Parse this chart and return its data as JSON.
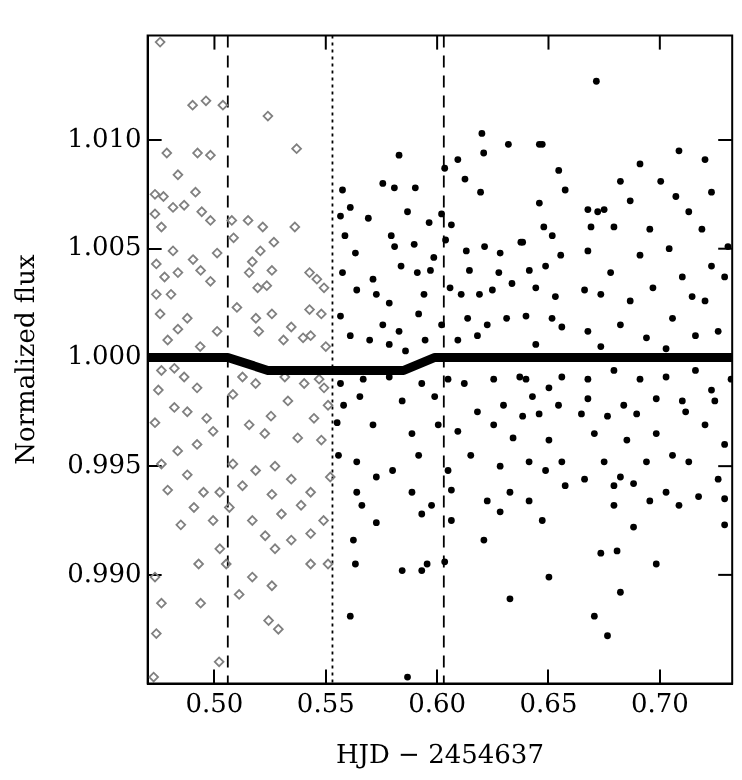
{
  "chart_data": {
    "type": "scatter",
    "xlabel": "HJD − 2454637",
    "ylabel": "Normalized flux",
    "xlim": [
      0.47,
      0.7325
    ],
    "ylim": [
      0.985,
      1.0148
    ],
    "xticks": [
      {
        "value": 0.5,
        "label": "0.50"
      },
      {
        "value": 0.55,
        "label": "0.55"
      },
      {
        "value": 0.6,
        "label": "0.60"
      },
      {
        "value": 0.65,
        "label": "0.65"
      },
      {
        "value": 0.7,
        "label": "0.70"
      }
    ],
    "yticks": [
      {
        "value": 0.99,
        "label": "0.990"
      },
      {
        "value": 0.995,
        "label": "0.995"
      },
      {
        "value": 1.0,
        "label": "1.000"
      },
      {
        "value": 1.005,
        "label": "1.005"
      },
      {
        "value": 1.01,
        "label": "1.010"
      }
    ],
    "ref_lines": [
      {
        "axis": "x",
        "value": 0.506,
        "color": "#000000",
        "line_style": "dashed"
      },
      {
        "axis": "x",
        "value": 0.553,
        "color": "#000000",
        "line_style": "dotted"
      },
      {
        "axis": "x",
        "value": 0.603,
        "color": "#000000",
        "line_style": "dashed"
      }
    ],
    "series": [
      {
        "type": "scatter",
        "marker": "diamond",
        "color": "#808080",
        "x": [
          0.4756,
          0.4902,
          0.4962,
          0.5038,
          0.524,
          0.5369,
          0.4786,
          0.4924,
          0.4982,
          0.4836,
          0.4915,
          0.4733,
          0.4771,
          0.4814,
          0.4864,
          0.4943,
          0.4982,
          0.4733,
          0.4762,
          0.5078,
          0.5151,
          0.5217,
          0.5361,
          0.5267,
          0.5206,
          0.5086,
          0.517,
          0.5012,
          0.4904,
          0.4814,
          0.4739,
          0.4836,
          0.4938,
          0.5156,
          0.5258,
          0.5427,
          0.4776,
          0.4805,
          0.4739,
          0.4982,
          0.5194,
          0.5235,
          0.5101,
          0.5427,
          0.5492,
          0.4756,
          0.4878,
          0.5012,
          0.5186,
          0.5199,
          0.5258,
          0.5345,
          0.5432,
          0.4836,
          0.479,
          0.4936,
          0.531,
          0.5398,
          0.4762,
          0.482,
          0.4864,
          0.4922,
          0.4748,
          0.5126,
          0.5185,
          0.5316,
          0.5403,
          0.5492,
          0.5083,
          0.482,
          0.4878,
          0.4965,
          0.4733,
          0.5156,
          0.5254,
          0.533,
          0.5447,
          0.5226,
          0.5374,
          0.4922,
          0.4994,
          0.4835,
          0.4762,
          0.5083,
          0.5185,
          0.5272,
          0.5345,
          0.4878,
          0.479,
          0.4951,
          0.5024,
          0.5126,
          0.5258,
          0.5432,
          0.4994,
          0.5067,
          0.517,
          0.5301,
          0.5389,
          0.4908,
          0.4849,
          0.5228,
          0.5345,
          0.5432,
          0.5024,
          0.5272,
          0.5432,
          0.4929,
          0.4733,
          0.5053,
          0.517,
          0.5258,
          0.5111,
          0.4938,
          0.4762,
          0.5243,
          0.5287,
          0.4739,
          0.5021,
          0.4727,
          0.546,
          0.548,
          0.55,
          0.547,
          0.551,
          0.548,
          0.552,
          0.549,
          0.551
        ],
        "values": [
          1.0145,
          1.0116,
          1.0118,
          1.0116,
          1.0111,
          1.0096,
          1.0094,
          1.0094,
          1.0093,
          1.0084,
          1.0076,
          1.0075,
          1.0074,
          1.0069,
          1.007,
          1.0067,
          1.0063,
          1.0066,
          1.006,
          1.0063,
          1.0063,
          1.006,
          1.006,
          1.0053,
          1.0049,
          1.0055,
          1.0044,
          1.0048,
          1.0045,
          1.0049,
          1.0043,
          1.0039,
          1.004,
          1.0039,
          1.004,
          1.0039,
          1.0037,
          1.0029,
          1.0029,
          1.0035,
          1.0032,
          1.0033,
          1.0023,
          1.0022,
          1.0032,
          1.002,
          1.0018,
          1.0012,
          1.0018,
          1.0012,
          1.002,
          1.0014,
          1.001,
          1.0013,
          1.0008,
          1.0005,
          1.0008,
          1.0009,
          0.9994,
          0.9995,
          0.9991,
          0.9986,
          0.9985,
          0.9991,
          0.9988,
          0.9991,
          0.9988,
          0.9986,
          0.9983,
          0.9977,
          0.9975,
          0.9972,
          0.997,
          0.9969,
          0.9973,
          0.998,
          0.9972,
          0.9965,
          0.9963,
          0.996,
          0.9966,
          0.9957,
          0.9951,
          0.9951,
          0.9948,
          0.995,
          0.9944,
          0.9946,
          0.9939,
          0.9938,
          0.9938,
          0.9941,
          0.9937,
          0.9938,
          0.9925,
          0.9931,
          0.9925,
          0.9928,
          0.9932,
          0.9931,
          0.9923,
          0.9918,
          0.9916,
          0.9919,
          0.9912,
          0.9912,
          0.9905,
          0.9905,
          0.9899,
          0.9905,
          0.9899,
          0.9895,
          0.9891,
          0.9887,
          0.9887,
          0.9879,
          0.9875,
          0.9873,
          0.986,
          0.9853,
          1.0036,
          1.002,
          1.0005,
          0.999,
          0.9978,
          0.9962,
          0.9945,
          0.9925,
          0.9905
        ]
      },
      {
        "type": "scatter",
        "marker": "circle",
        "color": "#000000",
        "x": [
          0.5575,
          0.561,
          0.5566,
          0.5586,
          0.5691,
          0.5756,
          0.5829,
          0.5808,
          0.5902,
          0.5867,
          0.6034,
          0.6093,
          0.6125,
          0.6201,
          0.6209,
          0.632,
          0.602,
          0.6064,
          0.5794,
          0.5964,
          0.6195,
          0.6376,
          0.5633,
          0.5809,
          0.5897,
          0.5985,
          0.6038,
          0.6131,
          0.6213,
          0.6283,
          0.5575,
          0.5712,
          0.5838,
          0.5911,
          0.597,
          0.6145,
          0.6277,
          0.5639,
          0.5727,
          0.5785,
          0.5941,
          0.6058,
          0.6108,
          0.619,
          0.6248,
          0.6336,
          0.5566,
          0.5756,
          0.5829,
          0.5917,
          0.602,
          0.6137,
          0.6225,
          0.6312,
          0.561,
          0.5697,
          0.5785,
          0.5858,
          0.5946,
          0.6093,
          0.6181,
          0.5566,
          0.5668,
          0.5785,
          0.5931,
          0.6049,
          0.6122,
          0.6254,
          0.6371,
          0.558,
          0.5653,
          0.5843,
          0.5989,
          0.6181,
          0.6298,
          0.5551,
          0.5712,
          0.5887,
          0.6005,
          0.6093,
          0.6254,
          0.6341,
          0.5557,
          0.5639,
          0.58,
          0.5917,
          0.6049,
          0.6151,
          0.6283,
          0.5639,
          0.5727,
          0.5887,
          0.5975,
          0.6064,
          0.6225,
          0.6327,
          0.5662,
          0.5727,
          0.5931,
          0.6064,
          0.621,
          0.6283,
          0.5624,
          0.5633,
          0.5843,
          0.5931,
          0.5955,
          0.6034,
          0.6327,
          0.561,
          0.5867,
          0.6715,
          0.6459,
          0.6472,
          0.6546,
          0.6575,
          0.6459,
          0.6479,
          0.6517,
          0.6384,
          0.6911,
          0.6823,
          0.7004,
          0.7086,
          0.7203,
          0.7232,
          0.6677,
          0.6721,
          0.675,
          0.6867,
          0.6955,
          0.7072,
          0.713,
          0.7189,
          0.7306,
          0.6691,
          0.6794,
          0.6414,
          0.6487,
          0.6555,
          0.6677,
          0.6779,
          0.6911,
          0.7042,
          0.7232,
          0.7291,
          0.6443,
          0.6531,
          0.6662,
          0.6735,
          0.6867,
          0.6969,
          0.7101,
          0.7145,
          0.7203,
          0.6399,
          0.6516,
          0.656,
          0.6677,
          0.6823,
          0.694,
          0.7057,
          0.716,
          0.7262,
          0.6443,
          0.6735,
          0.7028,
          0.6399,
          0.6502,
          0.656,
          0.6677,
          0.6794,
          0.6911,
          0.7028,
          0.716,
          0.7232,
          0.732,
          0.6428,
          0.6545,
          0.6677,
          0.6838,
          0.6984,
          0.7101,
          0.7247,
          0.6384,
          0.6458,
          0.6648,
          0.6765,
          0.6896,
          0.7116,
          0.7203,
          0.6502,
          0.6706,
          0.6852,
          0.6984,
          0.7057,
          0.7291,
          0.6413,
          0.6487,
          0.656,
          0.675,
          0.6823,
          0.694,
          0.713,
          0.7262,
          0.6413,
          0.6575,
          0.6662,
          0.6794,
          0.6882,
          0.7028,
          0.7174,
          0.7291,
          0.6472,
          0.6794,
          0.6955,
          0.7086,
          0.6882,
          0.7291,
          0.6735,
          0.6808,
          0.6984,
          0.6502,
          0.6823,
          0.6706,
          0.6765
        ],
        "values": [
          1.0077,
          1.0069,
          1.0065,
          1.0056,
          1.0064,
          1.008,
          1.0093,
          1.0078,
          1.0078,
          1.0067,
          1.0087,
          1.0091,
          1.0082,
          1.0103,
          1.0094,
          1.0098,
          1.0066,
          1.0061,
          1.0056,
          1.0062,
          1.0076,
          1.0053,
          1.0048,
          1.0051,
          1.0052,
          1.0046,
          1.0054,
          1.0049,
          1.0051,
          1.0048,
          1.0039,
          1.0036,
          1.0042,
          1.0039,
          1.004,
          1.004,
          1.0039,
          1.0031,
          1.0029,
          1.0025,
          1.0029,
          1.0032,
          1.0029,
          1.0029,
          1.0031,
          1.0034,
          1.0019,
          1.0015,
          1.0012,
          1.002,
          1.0015,
          1.0018,
          1.0015,
          1.0018,
          1.001,
          1.0008,
          1.0006,
          1.0003,
          1.0008,
          1.0008,
          1.001,
          0.9988,
          0.999,
          0.9991,
          0.9988,
          0.999,
          0.9988,
          0.999,
          0.9991,
          0.9978,
          0.9982,
          0.998,
          0.9982,
          0.9975,
          0.9978,
          0.997,
          0.9969,
          0.9965,
          0.9969,
          0.9966,
          0.9969,
          0.9963,
          0.9955,
          0.9952,
          0.9948,
          0.9955,
          0.9948,
          0.9955,
          0.995,
          0.9938,
          0.9945,
          0.9938,
          0.9932,
          0.9939,
          0.9934,
          0.9938,
          0.9932,
          0.9924,
          0.9928,
          0.9925,
          0.9916,
          0.9929,
          0.9916,
          0.9905,
          0.9902,
          0.9902,
          0.9905,
          0.9906,
          0.9889,
          0.9881,
          0.9853,
          1.0127,
          1.0098,
          1.0098,
          1.0086,
          1.0077,
          1.0071,
          1.006,
          1.0056,
          1.0053,
          1.0089,
          1.0081,
          1.0081,
          1.0095,
          1.0091,
          1.0076,
          1.0068,
          1.0067,
          1.0068,
          1.0072,
          1.0059,
          1.0074,
          1.0067,
          1.0059,
          1.0051,
          1.006,
          1.006,
          1.004,
          1.0042,
          1.0047,
          1.0049,
          1.0039,
          1.0047,
          1.005,
          1.0042,
          1.0037,
          1.0032,
          1.0028,
          1.0031,
          1.0029,
          1.0026,
          1.0032,
          1.0037,
          1.0028,
          1.0026,
          1.0019,
          1.0018,
          1.0014,
          1.0012,
          1.0015,
          1.0009,
          1.0018,
          1.001,
          1.0012,
          1.0006,
          1.0005,
          1.0004,
          0.999,
          0.9986,
          0.9991,
          0.999,
          0.9994,
          0.999,
          0.9991,
          0.9994,
          0.9985,
          0.999,
          0.9982,
          0.9978,
          0.9981,
          0.9978,
          0.9981,
          0.998,
          0.998,
          0.9973,
          0.9974,
          0.9974,
          0.9973,
          0.9974,
          0.9975,
          0.9969,
          0.9962,
          0.9965,
          0.9962,
          0.9965,
          0.9955,
          0.996,
          0.9952,
          0.9948,
          0.9952,
          0.9952,
          0.9945,
          0.9952,
          0.9952,
          0.9944,
          0.9934,
          0.9941,
          0.9944,
          0.9941,
          0.9942,
          0.9938,
          0.9936,
          0.9935,
          0.9925,
          0.9932,
          0.9934,
          0.9932,
          0.9922,
          0.9923,
          0.991,
          0.9911,
          0.9905,
          0.9899,
          0.9892,
          0.9881,
          0.9872
        ]
      },
      {
        "type": "line",
        "marker": "none",
        "color": "#000000",
        "x": [
          0.47,
          0.506,
          0.524,
          0.585,
          0.599,
          0.7325
        ],
        "values": [
          1.0,
          1.0,
          0.9994,
          0.9994,
          1.0,
          1.0
        ]
      }
    ]
  }
}
